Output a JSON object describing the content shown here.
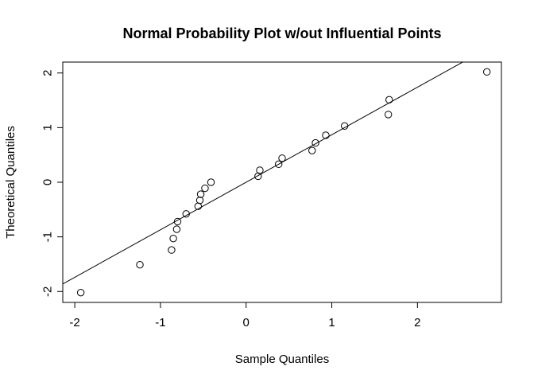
{
  "chart_data": {
    "type": "scatter",
    "title": "Normal Probability Plot w/out Influential Points",
    "xlabel": "Sample Quantiles",
    "ylabel": "Theoretical Quantiles",
    "xlim": [
      -2.14,
      2.98
    ],
    "ylim": [
      -2.2,
      2.2
    ],
    "xticks": [
      -2,
      -1,
      0,
      1,
      2
    ],
    "yticks": [
      -2,
      -1,
      0,
      1,
      2
    ],
    "points": [
      {
        "x": -1.93,
        "y": -2.02
      },
      {
        "x": -1.24,
        "y": -1.51
      },
      {
        "x": -0.87,
        "y": -1.24
      },
      {
        "x": -0.85,
        "y": -1.03
      },
      {
        "x": -0.81,
        "y": -0.86
      },
      {
        "x": -0.8,
        "y": -0.72
      },
      {
        "x": -0.7,
        "y": -0.58
      },
      {
        "x": -0.56,
        "y": -0.44
      },
      {
        "x": -0.54,
        "y": -0.33
      },
      {
        "x": -0.53,
        "y": -0.22
      },
      {
        "x": -0.48,
        "y": -0.11
      },
      {
        "x": -0.41,
        "y": 0.0
      },
      {
        "x": 0.14,
        "y": 0.11
      },
      {
        "x": 0.16,
        "y": 0.22
      },
      {
        "x": 0.38,
        "y": 0.33
      },
      {
        "x": 0.42,
        "y": 0.44
      },
      {
        "x": 0.77,
        "y": 0.58
      },
      {
        "x": 0.81,
        "y": 0.72
      },
      {
        "x": 0.93,
        "y": 0.86
      },
      {
        "x": 1.15,
        "y": 1.03
      },
      {
        "x": 1.66,
        "y": 1.24
      },
      {
        "x": 1.67,
        "y": 1.51
      },
      {
        "x": 2.81,
        "y": 2.02
      }
    ],
    "reference_line": {
      "intercept": 0.0,
      "slope": 0.87
    }
  }
}
